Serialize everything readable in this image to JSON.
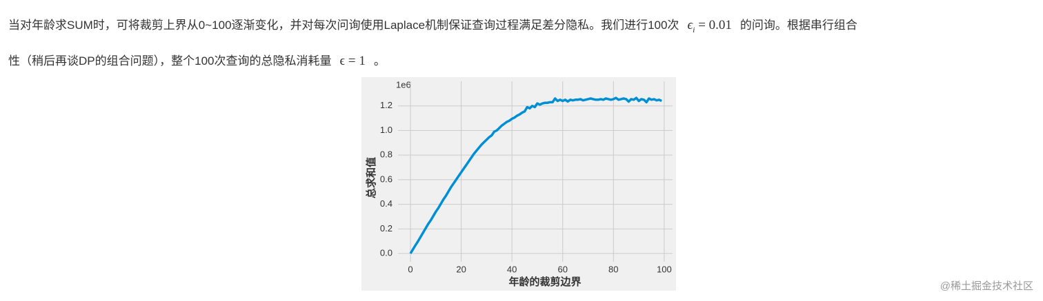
{
  "paragraph": {
    "line1_a": "当对年龄求SUM时，可将裁剪上界从0~100逐渐变化，并对每次问询使用Laplace机制保证查询过程满足差分隐私。我们进行100次",
    "math1_symbol": "ϵ",
    "math1_sub": "i",
    "math1_rest": "= 0.01",
    "line1_b": "的问询。根据串行组合",
    "line2_a": "性（稍后再谈DP的组合问题），整个100次查询的总隐私消耗量",
    "math2": "ϵ = 1",
    "line2_b": "。"
  },
  "watermark": "@稀土掘金技术社区",
  "chart_data": {
    "type": "line",
    "xlabel": "年龄的裁剪边界",
    "ylabel": "总求和值",
    "y_offset_label": "1e6",
    "color": "#008fd5",
    "grid": true,
    "x": [
      0,
      1,
      2,
      3,
      4,
      5,
      6,
      7,
      8,
      9,
      10,
      11,
      12,
      13,
      14,
      15,
      16,
      17,
      18,
      19,
      20,
      21,
      22,
      23,
      24,
      25,
      26,
      27,
      28,
      29,
      30,
      31,
      32,
      33,
      34,
      35,
      36,
      37,
      38,
      39,
      40,
      41,
      42,
      43,
      44,
      45,
      46,
      47,
      48,
      49,
      50,
      51,
      52,
      53,
      54,
      55,
      56,
      57,
      58,
      59,
      60,
      61,
      62,
      63,
      64,
      65,
      66,
      67,
      68,
      69,
      70,
      71,
      72,
      73,
      74,
      75,
      76,
      77,
      78,
      79,
      80,
      81,
      82,
      83,
      84,
      85,
      86,
      87,
      88,
      89,
      90,
      91,
      92,
      93,
      94,
      95,
      96,
      97,
      98,
      99
    ],
    "values": [
      0.0,
      0.034,
      0.068,
      0.1,
      0.135,
      0.17,
      0.205,
      0.24,
      0.27,
      0.305,
      0.34,
      0.37,
      0.405,
      0.44,
      0.47,
      0.505,
      0.54,
      0.57,
      0.6,
      0.63,
      0.66,
      0.69,
      0.72,
      0.75,
      0.78,
      0.81,
      0.835,
      0.86,
      0.885,
      0.905,
      0.925,
      0.945,
      0.96,
      0.99,
      1.0,
      1.02,
      1.04,
      1.055,
      1.07,
      1.08,
      1.095,
      1.105,
      1.12,
      1.13,
      1.145,
      1.155,
      1.19,
      1.18,
      1.2,
      1.19,
      1.22,
      1.21,
      1.22,
      1.225,
      1.225,
      1.23,
      1.23,
      1.26,
      1.24,
      1.25,
      1.24,
      1.25,
      1.235,
      1.25,
      1.245,
      1.25,
      1.25,
      1.255,
      1.245,
      1.25,
      1.255,
      1.26,
      1.255,
      1.25,
      1.25,
      1.255,
      1.25,
      1.26,
      1.255,
      1.25,
      1.255,
      1.265,
      1.25,
      1.255,
      1.26,
      1.255,
      1.235,
      1.255,
      1.25,
      1.265,
      1.24,
      1.255,
      1.25,
      1.23,
      1.26,
      1.25,
      1.255,
      1.245,
      1.25,
      1.24
    ],
    "xlim": [
      -4.9,
      103.3
    ],
    "ylim": [
      -0.067,
      1.4
    ],
    "xticks": [
      0,
      20,
      40,
      60,
      80,
      100
    ],
    "yticks": [
      {
        "value": 0,
        "label": "0.0"
      },
      0.2,
      0.4,
      0.6,
      0.8,
      {
        "value": 1,
        "label": "1.0"
      },
      1.2
    ]
  }
}
